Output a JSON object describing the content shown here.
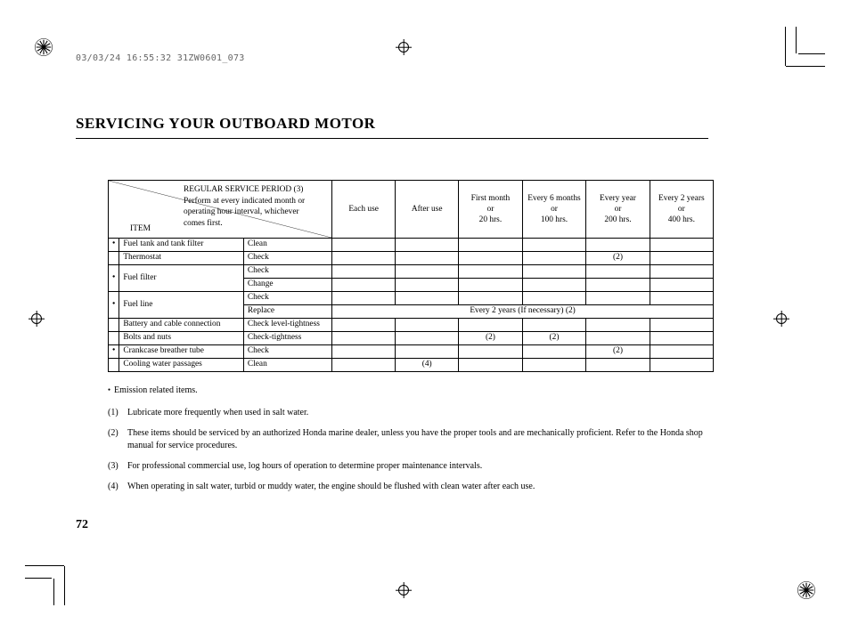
{
  "header_code": "03/03/24 16:55:32 31ZW0601_073",
  "title": "SERVICING YOUR OUTBOARD MOTOR",
  "page_number": "72",
  "table": {
    "header_item_label": "ITEM",
    "header_service_l1": "REGULAR SERVICE PERIOD     (3)",
    "header_service_l2": "Perform at every indicated month or",
    "header_service_l3": "operating hour interval, whichever",
    "header_service_l4": "comes first.",
    "periods": [
      {
        "l1": "Each use",
        "l2": "",
        "l3": ""
      },
      {
        "l1": "After use",
        "l2": "",
        "l3": ""
      },
      {
        "l1": "First month",
        "l2": "or",
        "l3": "20 hrs."
      },
      {
        "l1": "Every 6 months",
        "l2": "or",
        "l3": "100 hrs."
      },
      {
        "l1": "Every year",
        "l2": "or",
        "l3": "200 hrs."
      },
      {
        "l1": "Every 2 years",
        "l2": "or",
        "l3": "400 hrs."
      }
    ],
    "rows": [
      {
        "bullet": true,
        "item": "Fuel tank and tank filter",
        "action": "Clean",
        "cells": [
          "",
          "",
          "",
          "",
          "",
          ""
        ],
        "span": false
      },
      {
        "bullet": false,
        "item": "Thermostat",
        "action": "Check",
        "cells": [
          "",
          "",
          "",
          "",
          "(2)",
          ""
        ],
        "span": false
      },
      {
        "bullet": true,
        "item": "Fuel filter",
        "action": "Check",
        "cells": [
          "",
          "",
          "",
          "",
          "",
          ""
        ],
        "span": false,
        "rs_item": 2,
        "rs_bullet": 2
      },
      {
        "bullet": null,
        "item": null,
        "action": "Change",
        "cells": [
          "",
          "",
          "",
          "",
          "",
          ""
        ],
        "span": false
      },
      {
        "bullet": true,
        "item": "Fuel line",
        "action": "Check",
        "cells": [
          "",
          "",
          "",
          "",
          "",
          ""
        ],
        "span": false,
        "rs_item": 2,
        "rs_bullet": 2
      },
      {
        "bullet": null,
        "item": null,
        "action": "Replace",
        "span_text": "Every 2 years (If necessary) (2)",
        "span": true
      },
      {
        "bullet": false,
        "item": "Battery and cable connection",
        "action": "Check level-tightness",
        "cells": [
          "",
          "",
          "",
          "",
          "",
          ""
        ],
        "span": false
      },
      {
        "bullet": false,
        "item": "Bolts and nuts",
        "action": "Check-tightness",
        "cells": [
          "",
          "",
          "(2)",
          "(2)",
          "",
          ""
        ],
        "span": false
      },
      {
        "bullet": true,
        "item": "Crankcase breather tube",
        "action": "Check",
        "cells": [
          "",
          "",
          "",
          "",
          "(2)",
          ""
        ],
        "span": false
      },
      {
        "bullet": false,
        "item": "Cooling water passages",
        "action": "Clean",
        "cells": [
          "",
          "(4)",
          "",
          "",
          "",
          ""
        ],
        "span": false
      }
    ]
  },
  "notes": {
    "emission_label": "Emission related items.",
    "n1": "Lubricate more frequently when used in salt water.",
    "n2": "These items should be serviced by an authorized Honda marine dealer, unless you have the proper tools and are mechanically proficient. Refer to the Honda shop manual for service procedures.",
    "n3": "For professional commercial use, log hours of operation to determine proper maintenance intervals.",
    "n4": "When operating in salt water, turbid or muddy water, the engine should be flushed with clean water after each use.",
    "num1": "(1)",
    "num2": "(2)",
    "num3": "(3)",
    "num4": "(4)"
  },
  "colors": {
    "text": "#000000",
    "bg": "#ffffff",
    "code": "#666666"
  }
}
